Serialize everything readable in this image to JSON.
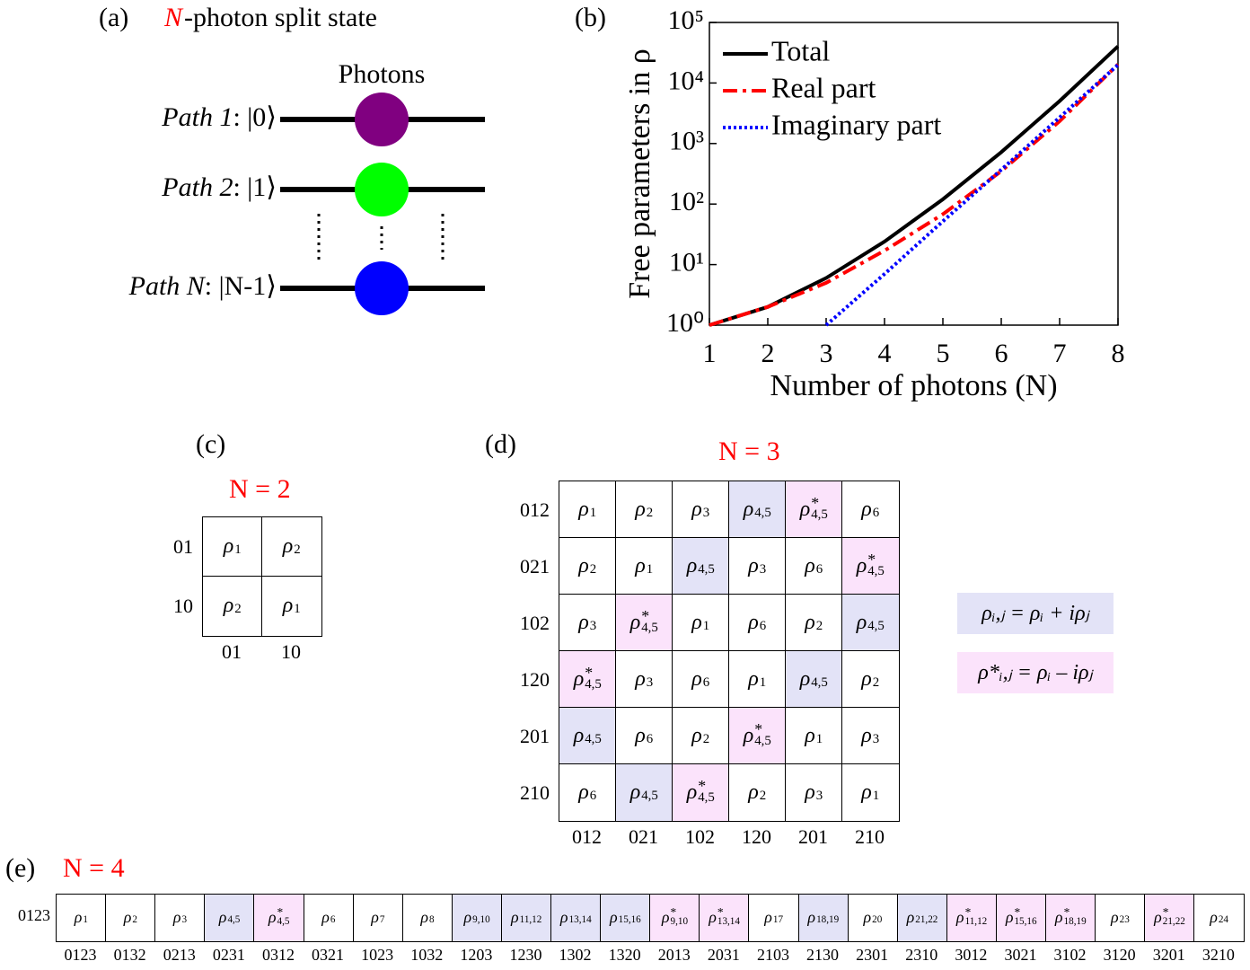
{
  "panel_a": {
    "label": "(a)",
    "title_var": "N",
    "title": "-photon split state",
    "photons": "Photons",
    "paths": [
      {
        "name": "Path 1",
        "state": ": |0⟩",
        "color": "#800080"
      },
      {
        "name": "Path 2",
        "state": ": |1⟩",
        "color": "#00ff00"
      },
      {
        "name": "Path N",
        "state": ": |N-1⟩",
        "color": "#0000ff"
      }
    ]
  },
  "chart_data": {
    "type": "line",
    "label": "(b)",
    "ylabel": "Free parameters in ρ",
    "xlabel": "Number of photons (N)",
    "x": [
      1,
      2,
      3,
      4,
      5,
      6,
      7,
      8
    ],
    "series": [
      {
        "name": "Total",
        "color": "#000000",
        "style": "solid",
        "values": [
          1,
          2,
          6,
          24,
          120,
          720,
          5040,
          40320
        ]
      },
      {
        "name": "Real part",
        "color": "#ff0000",
        "style": "dashdot",
        "values": [
          1,
          2,
          5,
          17,
          68,
          350,
          2340,
          20320
        ]
      },
      {
        "name": "Imaginary part",
        "color": "#0000ff",
        "style": "dotted",
        "values": [
          null,
          null,
          1,
          7,
          52,
          370,
          2700,
          20000
        ]
      }
    ],
    "xlim": [
      1,
      8
    ],
    "xticks": [
      1,
      2,
      3,
      4,
      5,
      6,
      7,
      8
    ],
    "ylim": [
      1,
      100000
    ],
    "yscale": "log",
    "yticks": [
      {
        "value": 1,
        "label": "10⁰"
      },
      {
        "value": 10,
        "label": "10¹"
      },
      {
        "value": 100,
        "label": "10²"
      },
      {
        "value": 1000,
        "label": "10³"
      },
      {
        "value": 10000,
        "label": "10⁴"
      },
      {
        "value": 100000,
        "label": "10⁵"
      }
    ],
    "legend": "upper left"
  },
  "symbol": "ρ",
  "colors": {
    "complex": "#e3e3f7",
    "conjugate": "#fbe3fb"
  },
  "panel_c": {
    "label": "(c)",
    "title": "N = 2",
    "rows": [
      "01",
      "10"
    ],
    "cols": [
      "01",
      "10"
    ],
    "cells": [
      [
        {
          "sub": "1"
        },
        {
          "sub": "2"
        }
      ],
      [
        {
          "sub": "2"
        },
        {
          "sub": "1"
        }
      ]
    ]
  },
  "panel_d": {
    "label": "(d)",
    "title": "N = 3",
    "rows": [
      "012",
      "021",
      "102",
      "120",
      "201",
      "210"
    ],
    "cols": [
      "012",
      "021",
      "102",
      "120",
      "201",
      "210"
    ],
    "cells": [
      [
        {
          "sub": "1"
        },
        {
          "sub": "2"
        },
        {
          "sub": "3"
        },
        {
          "sub": "4,5"
        },
        {
          "sub": "4,5",
          "sup": "*"
        },
        {
          "sub": "6"
        }
      ],
      [
        {
          "sub": "2"
        },
        {
          "sub": "1"
        },
        {
          "sub": "4,5"
        },
        {
          "sub": "3"
        },
        {
          "sub": "6"
        },
        {
          "sub": "4,5",
          "sup": "*"
        }
      ],
      [
        {
          "sub": "3"
        },
        {
          "sub": "4,5",
          "sup": "*"
        },
        {
          "sub": "1"
        },
        {
          "sub": "6"
        },
        {
          "sub": "2"
        },
        {
          "sub": "4,5"
        }
      ],
      [
        {
          "sub": "4,5",
          "sup": "*"
        },
        {
          "sub": "3"
        },
        {
          "sub": "6"
        },
        {
          "sub": "1"
        },
        {
          "sub": "4,5"
        },
        {
          "sub": "2"
        }
      ],
      [
        {
          "sub": "4,5"
        },
        {
          "sub": "6"
        },
        {
          "sub": "2"
        },
        {
          "sub": "4,5",
          "sup": "*"
        },
        {
          "sub": "1"
        },
        {
          "sub": "3"
        }
      ],
      [
        {
          "sub": "6"
        },
        {
          "sub": "4,5"
        },
        {
          "sub": "4,5",
          "sup": "*"
        },
        {
          "sub": "2"
        },
        {
          "sub": "3"
        },
        {
          "sub": "1"
        }
      ]
    ]
  },
  "legend": [
    "ρᵢ,ⱼ = ρᵢ + iρⱼ",
    "ρ*ᵢ,ⱼ = ρᵢ – iρⱼ"
  ],
  "panel_e": {
    "label": "(e)",
    "title": "N = 4",
    "rows": [
      "0123"
    ],
    "cols": [
      "0123",
      "0132",
      "0213",
      "0231",
      "0312",
      "0321",
      "1023",
      "1032",
      "1203",
      "1230",
      "1302",
      "1320",
      "2013",
      "2031",
      "2103",
      "2130",
      "2301",
      "2310",
      "3012",
      "3021",
      "3102",
      "3120",
      "3201",
      "3210"
    ],
    "cells": [
      [
        {
          "sub": "1"
        },
        {
          "sub": "2"
        },
        {
          "sub": "3"
        },
        {
          "sub": "4,5"
        },
        {
          "sub": "4,5",
          "sup": "*"
        },
        {
          "sub": "6"
        },
        {
          "sub": "7"
        },
        {
          "sub": "8"
        },
        {
          "sub": "9,10"
        },
        {
          "sub": "11,12"
        },
        {
          "sub": "13,14"
        },
        {
          "sub": "15,16"
        },
        {
          "sub": "9,10",
          "sup": "*"
        },
        {
          "sub": "13,14",
          "sup": "*"
        },
        {
          "sub": "17"
        },
        {
          "sub": "18,19"
        },
        {
          "sub": "20"
        },
        {
          "sub": "21,22"
        },
        {
          "sub": "11,12",
          "sup": "*"
        },
        {
          "sub": "15,16",
          "sup": "*"
        },
        {
          "sub": "18,19",
          "sup": "*"
        },
        {
          "sub": "23"
        },
        {
          "sub": "21,22",
          "sup": "*"
        },
        {
          "sub": "24"
        }
      ]
    ]
  }
}
